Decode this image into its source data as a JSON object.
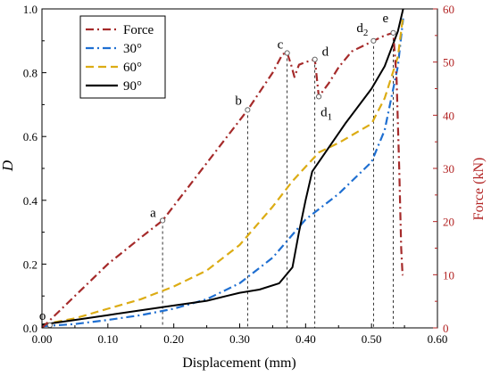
{
  "chart_data": {
    "type": "line",
    "xlabel": "Displacement (mm)",
    "ylabel_left": "D",
    "ylabel_right": "Force (kN)",
    "xlim": [
      0,
      0.6
    ],
    "ylim_left": [
      0,
      1.0
    ],
    "ylim_right": [
      0,
      60
    ],
    "x_ticks": [
      "0.00",
      "0.10",
      "0.20",
      "0.30",
      "0.40",
      "0.50",
      "0.60"
    ],
    "y_ticks_left": [
      "0.0",
      "0.2",
      "0.4",
      "0.6",
      "0.8",
      "1.0"
    ],
    "y_ticks_right": [
      "0",
      "10",
      "20",
      "30",
      "40",
      "50",
      "60"
    ],
    "legend_position": "top-left",
    "series": [
      {
        "name": "Force",
        "axis": "right",
        "color": "#a52a2a",
        "dash": "dashdot",
        "x": [
          0.0,
          0.05,
          0.1,
          0.15,
          0.183,
          0.25,
          0.312,
          0.35,
          0.365,
          0.372,
          0.378,
          0.383,
          0.39,
          0.4,
          0.414,
          0.42,
          0.435,
          0.45,
          0.47,
          0.503,
          0.52,
          0.533,
          0.538,
          0.542,
          0.545,
          0.547,
          0.548
        ],
        "y": [
          0,
          6,
          12,
          17,
          20.2,
          31,
          41,
          48,
          51.5,
          51.7,
          49.5,
          47.2,
          49.5,
          50,
          50.5,
          43.5,
          46,
          49,
          52,
          54,
          55,
          55.5,
          47,
          30,
          15,
          10,
          10
        ]
      },
      {
        "name": "30°",
        "axis": "left",
        "color": "#1f6fd1",
        "dash": "dashdot",
        "x": [
          0.0,
          0.05,
          0.1,
          0.15,
          0.2,
          0.25,
          0.3,
          0.35,
          0.4,
          0.45,
          0.5,
          0.52,
          0.54,
          0.548
        ],
        "y": [
          0.005,
          0.012,
          0.025,
          0.04,
          0.06,
          0.09,
          0.14,
          0.22,
          0.34,
          0.42,
          0.52,
          0.62,
          0.82,
          0.97
        ]
      },
      {
        "name": "60°",
        "axis": "left",
        "color": "#dcac14",
        "dash": "dashed",
        "x": [
          0.0,
          0.05,
          0.1,
          0.15,
          0.2,
          0.25,
          0.3,
          0.35,
          0.38,
          0.42,
          0.45,
          0.5,
          0.52,
          0.54,
          0.548
        ],
        "y": [
          0.01,
          0.03,
          0.06,
          0.09,
          0.13,
          0.18,
          0.26,
          0.38,
          0.46,
          0.55,
          0.58,
          0.64,
          0.72,
          0.85,
          0.98
        ]
      },
      {
        "name": "90°",
        "axis": "left",
        "color": "#000000",
        "dash": "solid",
        "x": [
          0.0,
          0.05,
          0.1,
          0.15,
          0.2,
          0.25,
          0.3,
          0.33,
          0.36,
          0.38,
          0.39,
          0.4,
          0.41,
          0.43,
          0.46,
          0.5,
          0.52,
          0.54,
          0.548
        ],
        "y": [
          0.01,
          0.025,
          0.04,
          0.055,
          0.07,
          0.085,
          0.11,
          0.12,
          0.14,
          0.19,
          0.3,
          0.4,
          0.49,
          0.55,
          0.64,
          0.75,
          0.82,
          0.93,
          1.0
        ]
      }
    ],
    "points": [
      {
        "label": "o",
        "x": 0.012,
        "force": 0.5
      },
      {
        "label": "a",
        "x": 0.183,
        "force": 20.2
      },
      {
        "label": "b",
        "x": 0.312,
        "force": 41
      },
      {
        "label": "c",
        "x": 0.372,
        "force": 51.7
      },
      {
        "label": "d",
        "x": 0.414,
        "force": 50.5
      },
      {
        "label": "d",
        "sub": "1",
        "x": 0.42,
        "force": 43.5
      },
      {
        "label": "d",
        "sub": "2",
        "x": 0.503,
        "force": 54.0
      },
      {
        "label": "e",
        "x": 0.533,
        "force": 55.5
      }
    ],
    "vlines_x": [
      0.183,
      0.312,
      0.372,
      0.414,
      0.503,
      0.533
    ]
  }
}
